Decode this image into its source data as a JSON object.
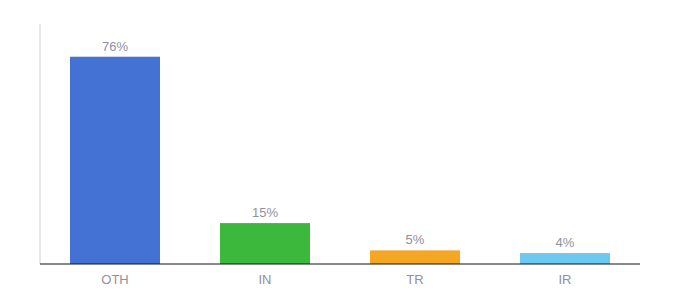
{
  "chart_data": {
    "type": "bar",
    "categories": [
      "OTH",
      "IN",
      "TR",
      "IR"
    ],
    "values": [
      76,
      15,
      5,
      4
    ],
    "value_labels": [
      "76%",
      "15%",
      "5%",
      "4%"
    ],
    "colors": [
      "#4472d4",
      "#3cb83c",
      "#f5a623",
      "#6dc8f0"
    ],
    "ylim": [
      0,
      88
    ],
    "data_labels": true,
    "tick_labels": "x",
    "grid": false
  }
}
